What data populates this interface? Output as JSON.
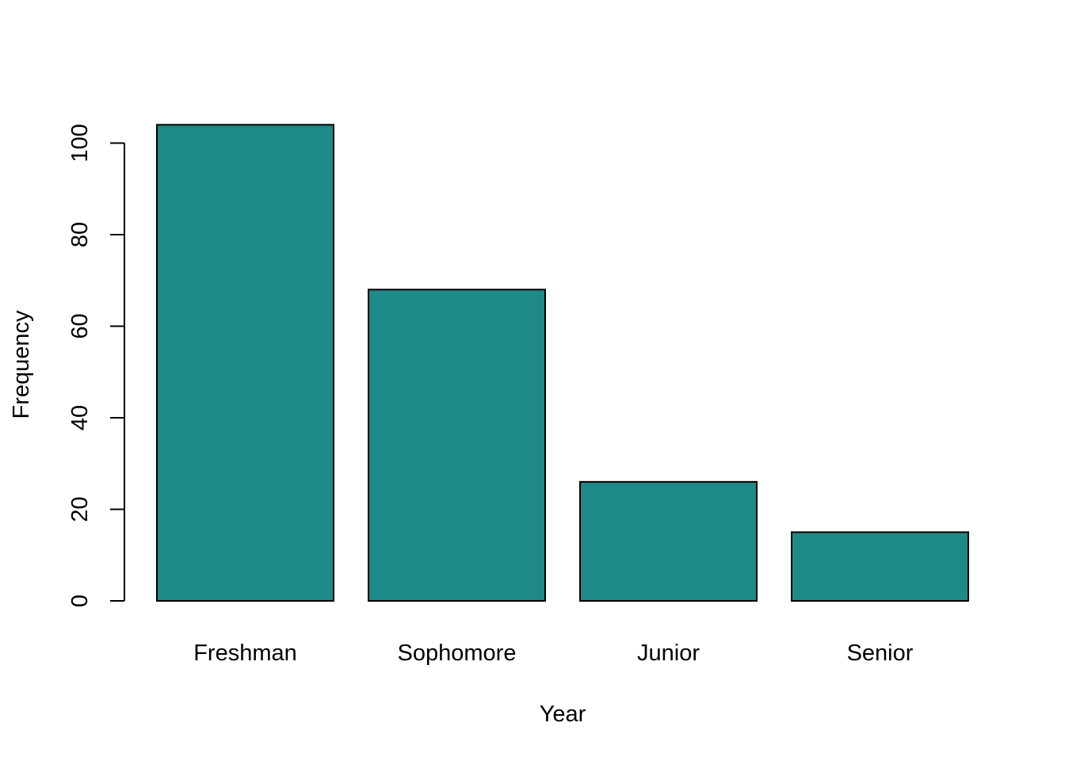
{
  "chart_data": {
    "type": "bar",
    "categories": [
      "Freshman",
      "Sophomore",
      "Junior",
      "Senior"
    ],
    "values": [
      104,
      68,
      26,
      15
    ],
    "title": "",
    "xlabel": "Year",
    "ylabel": "Frequency",
    "ylim": [
      0,
      104
    ],
    "yticks": [
      "0",
      "20",
      "40",
      "60",
      "80",
      "100"
    ],
    "grid": false,
    "bar_color": "#1E8A87",
    "edge_color": "#000000"
  }
}
